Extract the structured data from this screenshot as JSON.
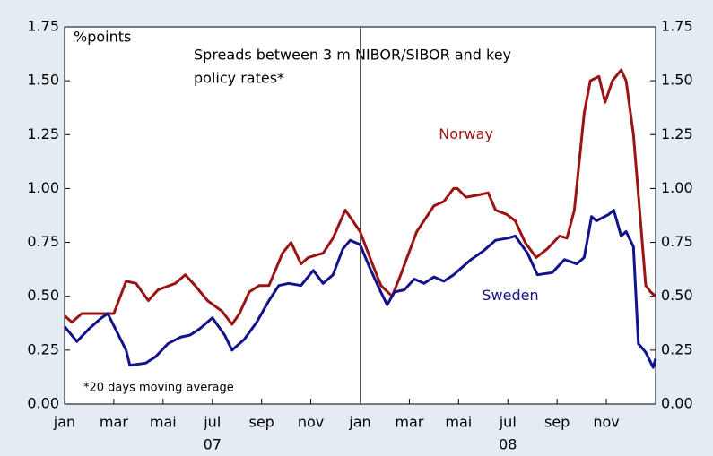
{
  "chart_data": {
    "type": "line",
    "ylabel": "%points",
    "annotation_lines": [
      "Spreads between 3 m NIBOR/SIBOR and key",
      "policy rates*"
    ],
    "footnote": "*20 days moving average",
    "xlim": [
      0,
      24
    ],
    "xticks": [
      {
        "value": 0,
        "label": "jan"
      },
      {
        "value": 2,
        "label": "mar"
      },
      {
        "value": 4,
        "label": "mai"
      },
      {
        "value": 6,
        "label": "jul"
      },
      {
        "value": 8,
        "label": "sep"
      },
      {
        "value": 10,
        "label": "nov"
      },
      {
        "value": 12,
        "label": "jan"
      },
      {
        "value": 14,
        "label": "mar"
      },
      {
        "value": 16,
        "label": "mai"
      },
      {
        "value": 18,
        "label": "jul"
      },
      {
        "value": 20,
        "label": "sep"
      },
      {
        "value": 22,
        "label": "nov"
      }
    ],
    "year_labels": [
      {
        "value": 6,
        "label": "07"
      },
      {
        "value": 18,
        "label": "08"
      }
    ],
    "divider_x": 12,
    "ylim": [
      0,
      1.75
    ],
    "yticks": [
      {
        "value": 0,
        "label": "0.00"
      },
      {
        "value": 0.25,
        "label": "0.25"
      },
      {
        "value": 0.5,
        "label": "0.50"
      },
      {
        "value": 0.75,
        "label": "0.75"
      },
      {
        "value": 1,
        "label": "1.00"
      },
      {
        "value": 1.25,
        "label": "1.25"
      },
      {
        "value": 1.5,
        "label": "1.50"
      },
      {
        "value": 1.75,
        "label": "1.75"
      }
    ],
    "y2lim": [
      0,
      1.75
    ],
    "y2ticks": [
      {
        "value": 0,
        "label": "0.00"
      },
      {
        "value": 0.25,
        "label": "0.25"
      },
      {
        "value": 0.5,
        "label": "0.50"
      },
      {
        "value": 0.75,
        "label": "0.75"
      },
      {
        "value": 1,
        "label": "1.00"
      },
      {
        "value": 1.25,
        "label": "1.25"
      },
      {
        "value": 1.5,
        "label": "1.50"
      },
      {
        "value": 1.75,
        "label": "1.75"
      }
    ],
    "series": [
      {
        "name": "Norway",
        "color": "#9b1414",
        "label_at": [
          16.3,
          1.25
        ],
        "x": [
          0,
          0.3,
          0.7,
          1.5,
          2,
          2.5,
          2.9,
          3.4,
          3.8,
          4.5,
          4.9,
          5.3,
          5.8,
          6.4,
          6.8,
          7.1,
          7.5,
          7.9,
          8.3,
          8.85,
          9.2,
          9.6,
          9.9,
          10.5,
          10.9,
          11.4,
          11.7,
          12,
          12.5,
          12.85,
          13.3,
          13.65,
          14.3,
          15,
          15.4,
          15.8,
          15.95,
          16.3,
          16.8,
          17.2,
          17.5,
          17.95,
          18.3,
          18.7,
          19.15,
          19.6,
          20.1,
          20.4,
          20.7,
          21.1,
          21.35,
          21.7,
          21.95,
          22.25,
          22.6,
          22.8,
          23.1,
          23.35,
          23.6,
          23.8,
          24
        ],
        "values": [
          0.41,
          0.38,
          0.42,
          0.42,
          0.42,
          0.57,
          0.56,
          0.48,
          0.53,
          0.56,
          0.6,
          0.55,
          0.48,
          0.43,
          0.37,
          0.42,
          0.52,
          0.55,
          0.55,
          0.7,
          0.75,
          0.65,
          0.68,
          0.7,
          0.77,
          0.9,
          0.85,
          0.8,
          0.65,
          0.55,
          0.5,
          0.6,
          0.8,
          0.92,
          0.94,
          1.0,
          1.0,
          0.96,
          0.97,
          0.98,
          0.9,
          0.88,
          0.85,
          0.75,
          0.68,
          0.72,
          0.78,
          0.77,
          0.9,
          1.35,
          1.5,
          1.52,
          1.4,
          1.5,
          1.55,
          1.5,
          1.25,
          0.9,
          0.55,
          0.52,
          0.5
        ]
      },
      {
        "name": "Sweden",
        "color": "#12128a",
        "label_at": [
          18.1,
          0.5
        ],
        "x": [
          0,
          0.5,
          1,
          1.5,
          1.75,
          2.5,
          2.65,
          3.3,
          3.7,
          4.2,
          4.7,
          5.1,
          5.5,
          6,
          6.5,
          6.8,
          7.3,
          7.8,
          8.3,
          8.7,
          9.1,
          9.6,
          10.1,
          10.5,
          10.9,
          11.3,
          11.6,
          12,
          12.4,
          12.8,
          13.1,
          13.4,
          13.8,
          14.2,
          14.6,
          15,
          15.4,
          15.8,
          16.5,
          17,
          17.5,
          18,
          18.3,
          18.8,
          19.2,
          19.8,
          20.3,
          20.8,
          21.1,
          21.4,
          21.6,
          22.1,
          22.3,
          22.6,
          22.8,
          23.1,
          23.3,
          23.6,
          23.9,
          24
        ],
        "values": [
          0.36,
          0.29,
          0.35,
          0.4,
          0.42,
          0.25,
          0.18,
          0.19,
          0.22,
          0.28,
          0.31,
          0.32,
          0.35,
          0.4,
          0.32,
          0.25,
          0.3,
          0.38,
          0.48,
          0.55,
          0.56,
          0.55,
          0.62,
          0.56,
          0.6,
          0.72,
          0.76,
          0.74,
          0.63,
          0.53,
          0.46,
          0.52,
          0.53,
          0.58,
          0.56,
          0.59,
          0.57,
          0.6,
          0.67,
          0.71,
          0.76,
          0.77,
          0.78,
          0.7,
          0.6,
          0.61,
          0.67,
          0.65,
          0.68,
          0.87,
          0.85,
          0.88,
          0.9,
          0.78,
          0.8,
          0.73,
          0.28,
          0.24,
          0.17,
          0.21
        ]
      }
    ]
  }
}
